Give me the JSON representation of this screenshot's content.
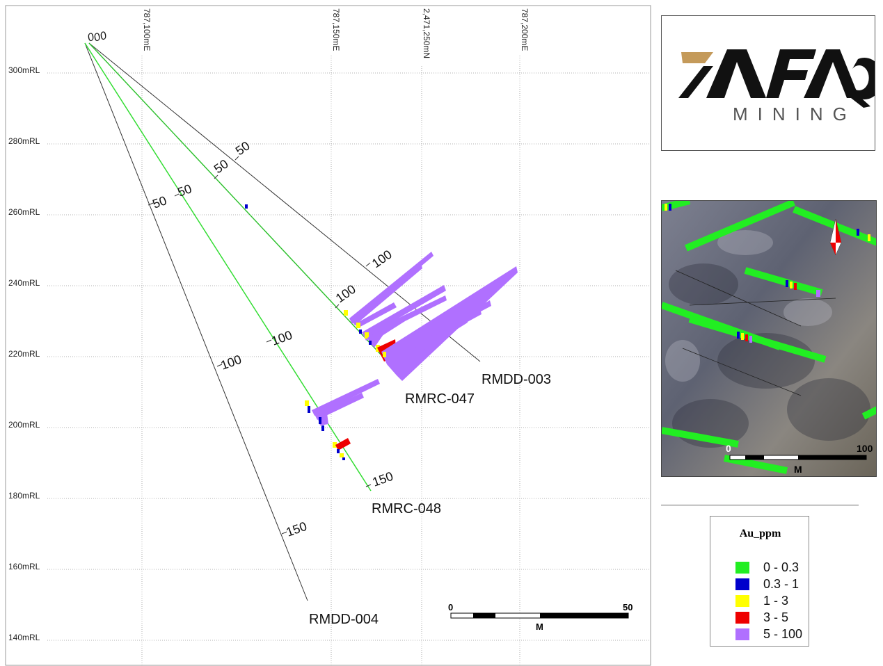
{
  "section": {
    "elevation_labels": [
      "300mRL",
      "280mRL",
      "260mRL",
      "240mRL",
      "220mRL",
      "200mRL",
      "180mRL",
      "160mRL",
      "140mRL"
    ],
    "easting_labels": [
      "787,100mE",
      "787,150mE",
      "2,471,250mN",
      "787,200mE"
    ],
    "collar_labels": [
      "0",
      "0",
      "0"
    ],
    "holes": [
      {
        "id": "RMDD-004",
        "depth_labels": [
          "50",
          "100",
          "150"
        ]
      },
      {
        "id": "RMRC-048",
        "depth_labels": [
          "50",
          "100",
          "150"
        ]
      },
      {
        "id": "RMDD-003",
        "depth_labels": [
          "50",
          "100"
        ]
      },
      {
        "id": "RMRC-047",
        "depth_labels": [
          "50",
          "100"
        ]
      }
    ],
    "scale_bar": {
      "start": "0",
      "end": "50",
      "unit": "M"
    },
    "colors": {
      "trace_green": "#33dd33",
      "grid": "#aaaaaa",
      "low": "#22ee22",
      "mid_low": "#0000cc",
      "mid": "#ffff00",
      "high": "#ee0000",
      "very_high": "#b070ff"
    }
  },
  "logo": {
    "brand": "AFAQ",
    "sub": "MINING"
  },
  "inset_map": {
    "scale_start": "0",
    "scale_end": "100",
    "scale_unit": "M",
    "north_arrow": "north-arrow-icon"
  },
  "legend": {
    "title": "Au_ppm",
    "items": [
      {
        "label": "0 - 0.3",
        "color": "#22ee22"
      },
      {
        "label": "0.3 - 1",
        "color": "#0000cc"
      },
      {
        "label": "1 - 3",
        "color": "#ffff00"
      },
      {
        "label": "3 - 5",
        "color": "#ee0000"
      },
      {
        "label": "5 - 100",
        "color": "#b070ff"
      }
    ]
  }
}
